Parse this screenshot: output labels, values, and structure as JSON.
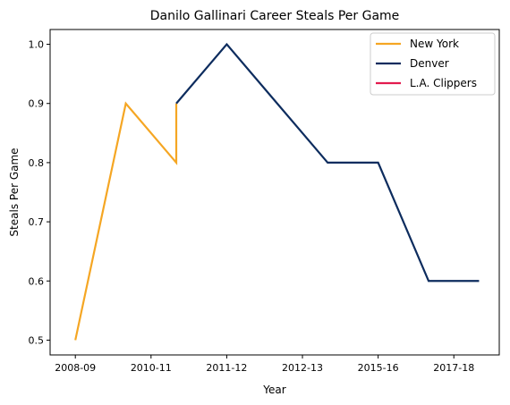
{
  "chart_data": {
    "type": "line",
    "title": "Danilo Gallinari Career Steals Per Game",
    "xlabel": "Year",
    "ylabel": "Steals Per Game",
    "x_tick_labels": [
      "2008-09",
      "2010-11",
      "2011-12",
      "2012-13",
      "2015-16",
      "2017-18"
    ],
    "x_tick_positions": [
      0,
      1.5,
      3,
      4.5,
      6,
      7.5
    ],
    "y_ticks": [
      0.5,
      0.6,
      0.7,
      0.8,
      0.9,
      1.0
    ],
    "y_tick_labels": [
      "0.5",
      "0.6",
      "0.7",
      "0.8",
      "0.9",
      "1.0"
    ],
    "xlim": [
      -0.5,
      8.4
    ],
    "ylim": [
      0.475,
      1.025
    ],
    "legend_position": "top-right",
    "grid": false,
    "series": [
      {
        "name": "New York",
        "color": "#f5a623",
        "x": [
          0,
          1,
          2,
          2
        ],
        "y": [
          0.5,
          0.9,
          0.8,
          0.9
        ]
      },
      {
        "name": "Denver",
        "color": "#0d2c5e",
        "x": [
          2,
          3,
          4,
          5,
          6,
          7,
          8
        ],
        "y": [
          0.9,
          1.0,
          0.9,
          0.8,
          0.8,
          0.6,
          0.6
        ]
      },
      {
        "name": "L.A. Clippers",
        "color": "#e31b4e",
        "x": [],
        "y": []
      }
    ]
  }
}
